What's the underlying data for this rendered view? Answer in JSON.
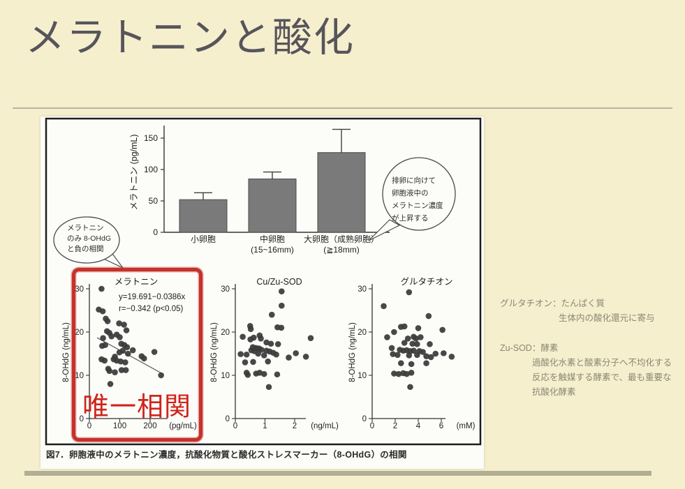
{
  "slide": {
    "title": "メラトニンと酸化",
    "background_color": "#f5efce",
    "accent_red": "#c4322a",
    "bar_color": "#7a7a7a",
    "dot_color": "#3a3a3a",
    "rule_color": "#b1ae93"
  },
  "figure": {
    "caption": "図7．卵胞液中のメラトニン濃度，抗酸化物質と酸化ストレスマーカー（8-OHdG）の相関",
    "highlight_label": "唯一相関",
    "left_bubble": {
      "lines": [
        "メラトニン",
        "のみ 8-OHdG",
        "と負の相関"
      ]
    },
    "right_bubble": {
      "lines": [
        "排卵に向けて",
        "卵胞液中の",
        "メラトニン濃度",
        "が上昇する"
      ]
    }
  },
  "chart_data": [
    {
      "type": "bar",
      "ylabel": "メラトニン (pg/mL)",
      "categories": [
        [
          "小卵胞"
        ],
        [
          "中卵胞",
          "(15~16mm)"
        ],
        [
          "大卵胞（成熟卵胞）",
          "(≧18mm)"
        ]
      ],
      "values": [
        52,
        85,
        127
      ],
      "errors": [
        11,
        11,
        37
      ],
      "yticks": [
        0,
        50,
        100,
        150
      ],
      "ylim": [
        0,
        170
      ],
      "grid": false
    },
    {
      "type": "scatter",
      "title": "メラトニン",
      "xlabel": "(pg/mL)",
      "ylabel": "8-OHdG (ng/mL)",
      "xticks": [
        0,
        100,
        200
      ],
      "yticks": [
        0,
        10,
        20,
        30
      ],
      "xlim": [
        0,
        250
      ],
      "ylim": [
        0,
        31
      ],
      "annotation": [
        "y=19.691−0.0386x",
        "r=−0.342 (p<0.05)"
      ],
      "regression": {
        "x1": 25,
        "y1": 18.7,
        "x2": 245,
        "y2": 10.2
      },
      "points": [
        [
          40,
          30
        ],
        [
          31,
          25.2
        ],
        [
          44,
          24.8
        ],
        [
          54,
          23.1
        ],
        [
          60,
          22.5
        ],
        [
          98,
          22
        ],
        [
          114,
          21.7
        ],
        [
          122,
          20.4
        ],
        [
          58,
          20.2
        ],
        [
          66,
          19.8
        ],
        [
          90,
          19.4
        ],
        [
          73,
          19
        ],
        [
          45,
          18.6
        ],
        [
          100,
          18.8
        ],
        [
          52,
          17
        ],
        [
          42,
          16.8
        ],
        [
          105,
          17.3
        ],
        [
          115,
          17
        ],
        [
          124,
          16.5
        ],
        [
          110,
          15.7
        ],
        [
          99,
          15.3
        ],
        [
          143,
          15.8
        ],
        [
          214,
          15.4
        ],
        [
          127,
          15
        ],
        [
          84,
          14.3
        ],
        [
          172,
          14.4
        ],
        [
          180,
          13.9
        ],
        [
          40,
          13.7
        ],
        [
          50,
          13.4
        ],
        [
          80,
          13.7
        ],
        [
          90,
          13.4
        ],
        [
          103,
          13.2
        ],
        [
          118,
          13
        ],
        [
          62,
          11.5
        ],
        [
          66,
          11
        ],
        [
          84,
          10.7
        ],
        [
          106,
          11.2
        ],
        [
          120,
          11.2
        ],
        [
          236,
          10
        ],
        [
          69,
          8
        ]
      ]
    },
    {
      "type": "scatter",
      "title": "Cu/Zu-SOD",
      "xlabel": "(ng/mL)",
      "ylabel": "8-OHdG (ng/mL)",
      "xticks": [
        0,
        1,
        2
      ],
      "yticks": [
        0,
        10,
        20,
        30
      ],
      "xlim": [
        0,
        2.6
      ],
      "ylim": [
        0,
        31
      ],
      "points": [
        [
          1.56,
          29.4
        ],
        [
          1.56,
          26.1
        ],
        [
          1.23,
          24
        ],
        [
          0.5,
          21.4
        ],
        [
          0.52,
          20.7
        ],
        [
          1.42,
          21.1
        ],
        [
          1.55,
          21
        ],
        [
          0.25,
          18.9
        ],
        [
          0.62,
          18.7
        ],
        [
          0.82,
          19.2
        ],
        [
          0.86,
          18.5
        ],
        [
          2.54,
          18.6
        ],
        [
          0.51,
          18.3
        ],
        [
          1.05,
          17.6
        ],
        [
          1.2,
          17.3
        ],
        [
          1.44,
          17.2
        ],
        [
          0.59,
          16.5
        ],
        [
          0.7,
          16.3
        ],
        [
          0.8,
          16.2
        ],
        [
          0.88,
          15.9
        ],
        [
          0.54,
          15.8
        ],
        [
          0.64,
          15.6
        ],
        [
          1.05,
          15.7
        ],
        [
          1.16,
          15.5
        ],
        [
          1.28,
          15.2
        ],
        [
          0.18,
          14.9
        ],
        [
          0.38,
          14.8
        ],
        [
          0.77,
          15
        ],
        [
          0.97,
          14.6
        ],
        [
          1.38,
          14.8
        ],
        [
          2.04,
          15.1
        ],
        [
          2.38,
          14.3
        ],
        [
          1.8,
          14.1
        ],
        [
          0.33,
          13
        ],
        [
          0.6,
          13.1
        ],
        [
          1.1,
          13.2
        ],
        [
          0.38,
          10.6
        ],
        [
          0.42,
          10.1
        ],
        [
          0.7,
          10.4
        ],
        [
          0.82,
          10.6
        ],
        [
          0.97,
          10.3
        ],
        [
          1.41,
          10.2
        ],
        [
          1.13,
          7.3
        ]
      ]
    },
    {
      "type": "scatter",
      "title": "グルタチオン",
      "xlabel": "(mM)",
      "ylabel": "8-OHdG (ng/mL)",
      "xticks": [
        0,
        2,
        4,
        6
      ],
      "yticks": [
        0,
        10,
        20,
        30
      ],
      "xlim": [
        0,
        7.2
      ],
      "ylim": [
        0,
        31
      ],
      "points": [
        [
          3.2,
          29.2
        ],
        [
          1,
          26
        ],
        [
          4.9,
          23.7
        ],
        [
          2.5,
          21.2
        ],
        [
          2.8,
          21.3
        ],
        [
          4,
          20.9
        ],
        [
          6.1,
          20.5
        ],
        [
          1.9,
          20
        ],
        [
          1.3,
          18.8
        ],
        [
          3.1,
          18.5
        ],
        [
          3.6,
          18.9
        ],
        [
          3.8,
          18.5
        ],
        [
          4.2,
          18.8
        ],
        [
          1.7,
          16.3
        ],
        [
          2.8,
          17.5
        ],
        [
          3.5,
          17.3
        ],
        [
          3.9,
          17.2
        ],
        [
          5,
          17.2
        ],
        [
          2.4,
          15.9
        ],
        [
          2.7,
          15.7
        ],
        [
          3,
          15.8
        ],
        [
          3.3,
          15.6
        ],
        [
          3.6,
          15.7
        ],
        [
          4.1,
          15.6
        ],
        [
          4.4,
          15.4
        ],
        [
          1.8,
          14.9
        ],
        [
          2.2,
          14.7
        ],
        [
          3.2,
          14.6
        ],
        [
          3.9,
          14.7
        ],
        [
          4.7,
          14.4
        ],
        [
          5.1,
          14.2
        ],
        [
          5.5,
          15
        ],
        [
          6.2,
          15.1
        ],
        [
          6.9,
          14.3
        ],
        [
          2.5,
          12.8
        ],
        [
          3.4,
          12.6
        ],
        [
          4.7,
          12.8
        ],
        [
          1.9,
          10.4
        ],
        [
          2.3,
          10.3
        ],
        [
          2.7,
          10.5
        ],
        [
          3,
          10.3
        ],
        [
          3.4,
          10.6
        ],
        [
          3.3,
          7.3
        ]
      ]
    }
  ],
  "notes": {
    "glutathione": {
      "title": "グルタチオン：たんぱく質",
      "detail": "生体内の酸化還元に寄与"
    },
    "sod": {
      "title": "Zu-SOD：酵素",
      "lines": [
        "過酸化水素と酸素分子へ不均化する",
        "反応を触媒する酵素で、最も重要な",
        "抗酸化酵素"
      ]
    }
  }
}
